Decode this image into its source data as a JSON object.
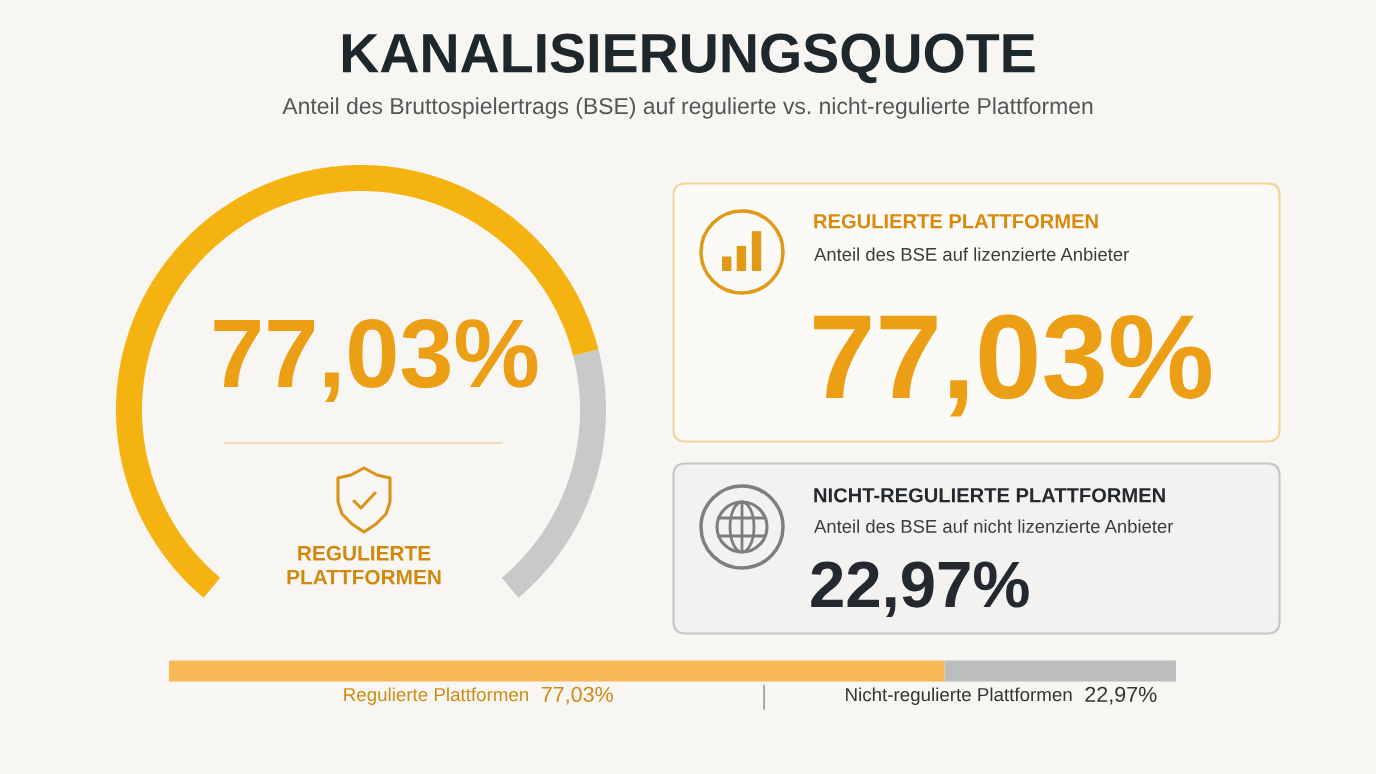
{
  "chart_data": [
    {
      "type": "donut",
      "title": "KANALISIERUNGSQUOTE",
      "subtitle": "Anteil des Bruttospielertrags (BSE) auf regulierte vs. nicht-regulierte Plattformen",
      "categories": [
        null,
        null
      ],
      "values": [
        77.03,
        22.97
      ],
      "colors": [
        "#f5b312",
        "#c9c9c9"
      ],
      "value_labels": [
        "77,03%",
        null
      ],
      "annotations": [
        "REGULIERTE\nPLATTFORMEN"
      ]
    },
    {
      "type": "other",
      "title": "REGULIERTE PLATTFORMEN",
      "subtitle": "Anteil des BSE auf lizenzierte Anbieter",
      "annotations": [
        "77,03%"
      ]
    },
    {
      "type": "other",
      "title": "NICHT-REGULIERTE PLATTFORMEN",
      "subtitle": "Anteil des BSE auf nicht lizenzierte Anbieter",
      "annotations": [
        "22,97%"
      ]
    },
    {
      "type": "bar",
      "orientation": "horizontal",
      "stacked": true,
      "categories": [
        null
      ],
      "tick_labels": false,
      "series": [
        {
          "name": "Regulierte Plattformen",
          "color": "#f8b854",
          "values": [
            77.03
          ],
          "value_labels": [
            "77,03%"
          ]
        },
        {
          "name": "Nicht-regulierte Plattformen",
          "color": "#bdbdbd",
          "values": [
            22.97
          ],
          "value_labels": [
            "22,97%"
          ]
        }
      ]
    }
  ]
}
